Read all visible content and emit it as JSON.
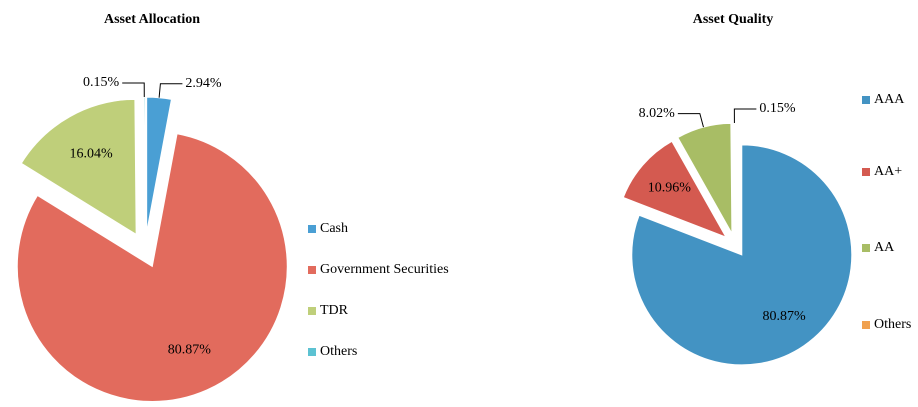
{
  "chart_data": [
    {
      "type": "pie",
      "title": "Asset Allocation",
      "categories": [
        "Cash",
        "Government Securities",
        "TDR",
        "Others"
      ],
      "values": [
        2.94,
        80.87,
        16.04,
        0.15
      ],
      "value_labels": [
        "2.94%",
        "80.87%",
        "16.04%",
        "0.15%"
      ],
      "colors": [
        "#4a9fd4",
        "#e26b5d",
        "#bfcf7a",
        "#5cc2d2"
      ],
      "legend": "right"
    },
    {
      "type": "pie",
      "title": "Asset Quality",
      "categories": [
        "AAA",
        "AA+",
        "AA",
        "Others"
      ],
      "values": [
        80.87,
        10.96,
        8.02,
        0.15
      ],
      "value_labels": [
        "80.87%",
        "10.96%",
        "8.02%",
        "0.15%"
      ],
      "colors": [
        "#4393c3",
        "#d45a50",
        "#a8bd65",
        "#f0a150"
      ],
      "legend": "right"
    }
  ]
}
